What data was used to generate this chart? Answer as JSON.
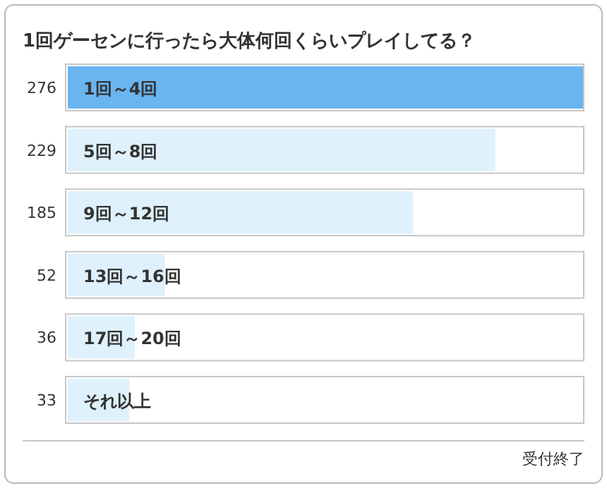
{
  "chart_data": {
    "type": "bar",
    "orientation": "horizontal",
    "title": "1回ゲーセンに行ったら大体何回くらいプレイしてる？",
    "categories": [
      "1回～4回",
      "5回～8回",
      "9回～12回",
      "13回～16回",
      "17回～20回",
      "それ以上"
    ],
    "values": [
      276,
      229,
      185,
      52,
      36,
      33
    ],
    "colors": [
      "#6ab4f0",
      "#def1fc",
      "#def1fc",
      "#def1fc",
      "#def1fc",
      "#def1fc"
    ],
    "data_labels": true,
    "annotations": [
      "受付終了"
    ]
  }
}
